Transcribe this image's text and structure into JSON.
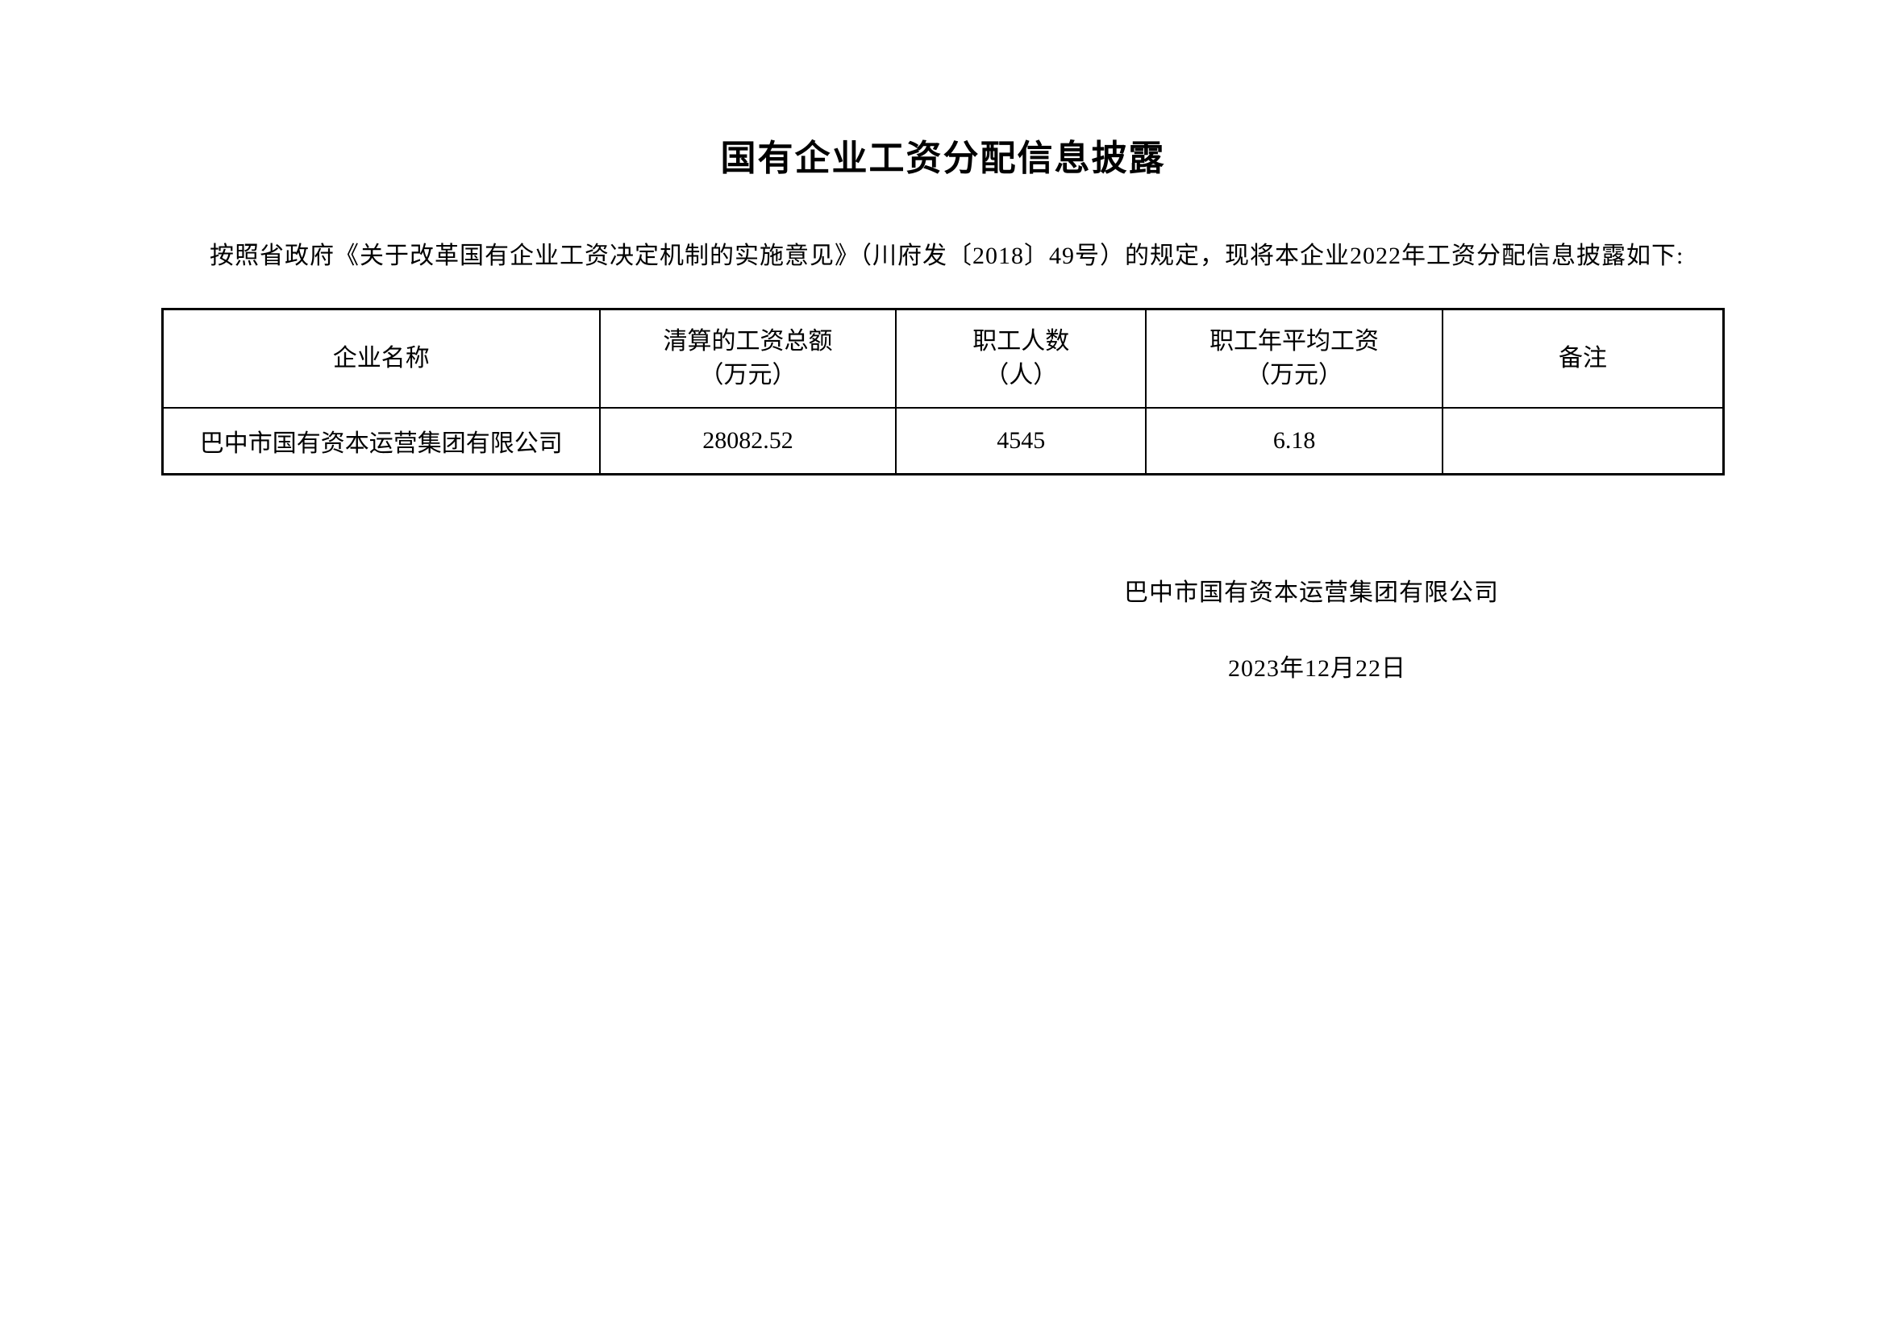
{
  "document": {
    "title": "国有企业工资分配信息披露",
    "intro_paragraph": "按照省政府《关于改革国有企业工资决定机制的实施意见》（川府发〔2018〕49号）的规定，现将本企业2022年工资分配信息披露如下:",
    "table": {
      "columns": [
        {
          "label_line1": "企业名称",
          "label_line2": ""
        },
        {
          "label_line1": "清算的工资总额",
          "label_line2": "（万元）"
        },
        {
          "label_line1": "职工人数",
          "label_line2": "（人）"
        },
        {
          "label_line1": "职工年平均工资",
          "label_line2": "（万元）"
        },
        {
          "label_line1": "备注",
          "label_line2": ""
        }
      ],
      "rows": [
        {
          "company_name": "巴中市国有资本运营集团有限公司",
          "total_salary": "28082.52",
          "employee_count": "4545",
          "average_salary": "6.18",
          "remark": ""
        }
      ],
      "border_color": "#000000",
      "text_color": "#000000",
      "background_color": "#ffffff",
      "font_size": 30
    },
    "signature": {
      "company": "巴中市国有资本运营集团有限公司",
      "date": "2023年12月22日"
    },
    "styling": {
      "title_fontsize": 44,
      "body_fontsize": 30,
      "text_color": "#000000",
      "background_color": "#ffffff"
    }
  }
}
